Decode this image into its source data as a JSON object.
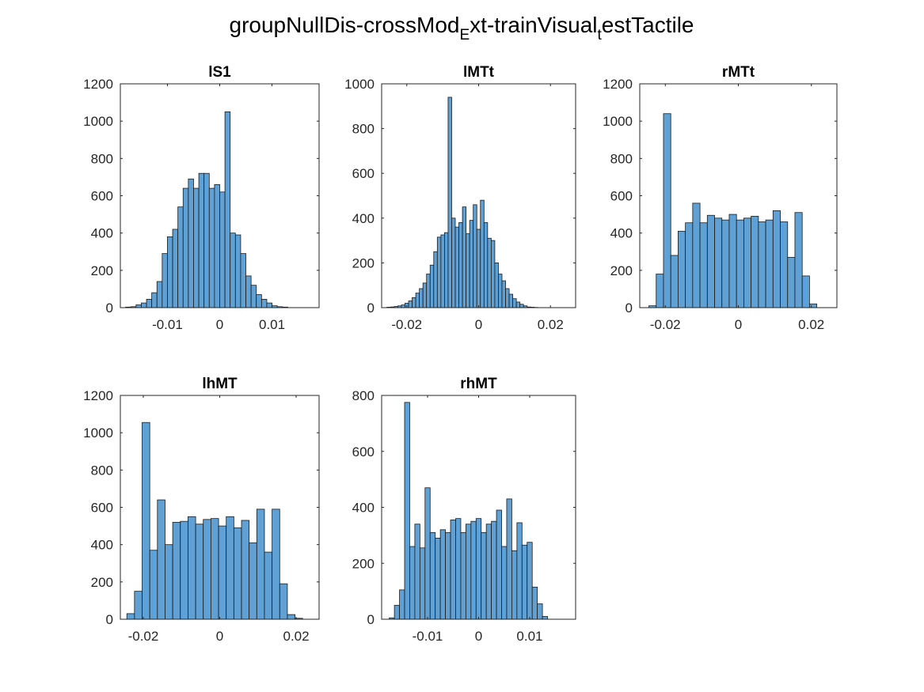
{
  "figure": {
    "title_parts": [
      "groupNullDis-crossMod",
      "E",
      "xt-trainVisual",
      "t",
      "estTactile"
    ],
    "bar_color": "#5fa1d5",
    "edge_color": "#1a1a1a"
  },
  "chart_data": [
    {
      "type": "bar",
      "title": "lS1",
      "xlim": [
        -0.019,
        0.019
      ],
      "ylim": [
        0,
        1200
      ],
      "xticks": [
        -0.01,
        0,
        0.01
      ],
      "xtick_labels": [
        "-0.01",
        "0",
        "0.01"
      ],
      "yticks": [
        0,
        200,
        400,
        600,
        800,
        1000,
        1200
      ],
      "bin_start": -0.018,
      "bin_width": 0.001,
      "values": [
        3,
        5,
        15,
        25,
        45,
        80,
        140,
        290,
        380,
        420,
        540,
        640,
        690,
        640,
        720,
        720,
        640,
        660,
        620,
        1050,
        400,
        390,
        290,
        170,
        120,
        70,
        45,
        25,
        10,
        5,
        3,
        0,
        0,
        0,
        0,
        0
      ]
    },
    {
      "type": "bar",
      "title": "lMTt",
      "xlim": [
        -0.027,
        0.027
      ],
      "ylim": [
        0,
        1000
      ],
      "xticks": [
        -0.02,
        0,
        0.02
      ],
      "xtick_labels": [
        "-0.02",
        "0",
        "0.02"
      ],
      "yticks": [
        0,
        200,
        400,
        600,
        800,
        1000
      ],
      "bin_start": -0.0255,
      "bin_width": 0.001,
      "values": [
        2,
        3,
        5,
        8,
        12,
        20,
        30,
        45,
        65,
        85,
        110,
        150,
        190,
        250,
        315,
        325,
        335,
        940,
        400,
        360,
        380,
        450,
        330,
        390,
        460,
        350,
        480,
        380,
        310,
        300,
        200,
        150,
        120,
        85,
        60,
        40,
        25,
        15,
        8,
        3,
        2,
        1,
        0,
        0,
        0,
        0,
        0,
        0,
        0,
        0,
        0
      ]
    },
    {
      "type": "bar",
      "title": "rMTt",
      "xlim": [
        -0.027,
        0.027
      ],
      "ylim": [
        0,
        1200
      ],
      "xticks": [
        -0.02,
        0,
        0.02
      ],
      "xtick_labels": [
        "-0.02",
        "0",
        "0.02"
      ],
      "yticks": [
        0,
        200,
        400,
        600,
        800,
        1000,
        1200
      ],
      "bin_start": -0.0245,
      "bin_width": 0.002,
      "values": [
        10,
        180,
        1040,
        280,
        410,
        455,
        560,
        455,
        495,
        480,
        470,
        500,
        470,
        480,
        490,
        460,
        470,
        520,
        460,
        270,
        510,
        170,
        20
      ]
    },
    {
      "type": "bar",
      "title": "lhMT",
      "xlim": [
        -0.026,
        0.026
      ],
      "ylim": [
        0,
        1200
      ],
      "xticks": [
        -0.02,
        0,
        0.02
      ],
      "xtick_labels": [
        "-0.02",
        "0",
        "0.02"
      ],
      "yticks": [
        0,
        200,
        400,
        600,
        800,
        1000,
        1200
      ],
      "bin_start": -0.0243,
      "bin_width": 0.002,
      "values": [
        30,
        150,
        1055,
        370,
        640,
        400,
        520,
        525,
        550,
        510,
        535,
        540,
        500,
        550,
        490,
        530,
        410,
        590,
        360,
        590,
        190,
        25,
        5
      ]
    },
    {
      "type": "bar",
      "title": "rhMT",
      "xlim": [
        -0.019,
        0.019
      ],
      "ylim": [
        0,
        800
      ],
      "xticks": [
        -0.01,
        0,
        0.01
      ],
      "xtick_labels": [
        "-0.01",
        "0",
        "0.01"
      ],
      "yticks": [
        0,
        200,
        400,
        600,
        800
      ],
      "bin_start": -0.0175,
      "bin_width": 0.001,
      "values": [
        5,
        50,
        105,
        775,
        260,
        340,
        255,
        470,
        310,
        290,
        320,
        310,
        355,
        360,
        310,
        340,
        350,
        360,
        310,
        340,
        350,
        390,
        260,
        430,
        245,
        345,
        265,
        275,
        115,
        55,
        10,
        0,
        0,
        0,
        0
      ]
    }
  ]
}
